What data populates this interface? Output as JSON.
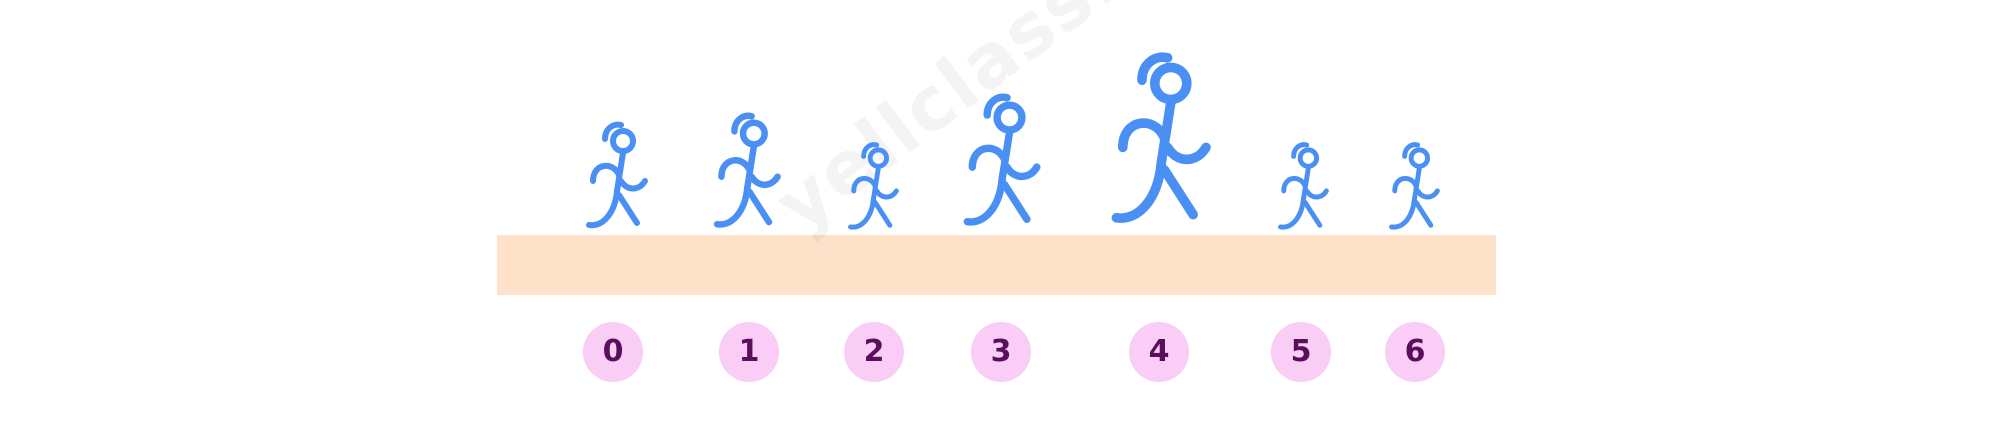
{
  "figure_color": "#4a8ff4",
  "ground_color": "#fde1c8",
  "badge_color": "#f9cdf5",
  "label_color": "#5a0f5c",
  "watermark": "yellclass.com",
  "items": [
    {
      "label": "0"
    },
    {
      "label": "1"
    },
    {
      "label": "2"
    },
    {
      "label": "3"
    },
    {
      "label": "4"
    },
    {
      "label": "5"
    },
    {
      "label": "6"
    }
  ]
}
